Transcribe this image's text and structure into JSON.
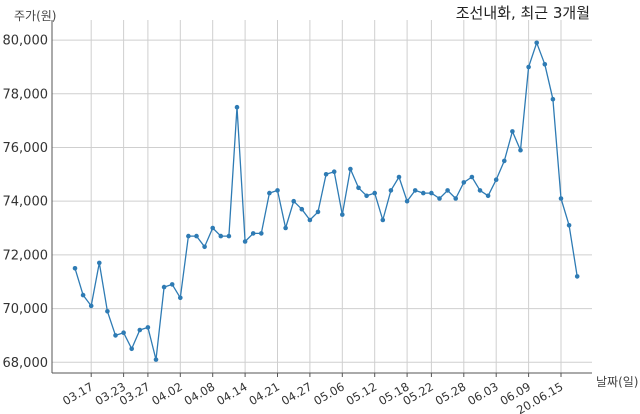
{
  "chart_data": {
    "type": "line",
    "title": "조선내화, 최근 3개월",
    "ylabel": "주가(원)",
    "xlabel": "날짜(일)",
    "ylim": [
      67600,
      80600
    ],
    "yticks": [
      68000,
      70000,
      72000,
      74000,
      76000,
      78000,
      80000
    ],
    "ytick_labels": [
      "68,000",
      "70,000",
      "72,000",
      "74,000",
      "76,000",
      "78,000",
      "80,000"
    ],
    "xtick_labels": [
      "03.17",
      "03.23",
      "03.27",
      "04.02",
      "04.08",
      "04.14",
      "04.21",
      "04.27",
      "05.06",
      "05.12",
      "05.18",
      "05.22",
      "05.28",
      "06.03",
      "06.09",
      "20.06.15"
    ],
    "xtick_positions": [
      2,
      6,
      9,
      13,
      17,
      21,
      25,
      29,
      33,
      37,
      41,
      44,
      48,
      52,
      56,
      60
    ],
    "grid": true,
    "color": "#2e7bb4",
    "series": [
      {
        "values": [
          71500,
          70500,
          70100,
          71700,
          69900,
          69000,
          69100,
          68500,
          69200,
          69300,
          68100,
          70800,
          70900,
          70400,
          72700,
          72700,
          72300,
          73000,
          72700,
          72700,
          77500,
          72500,
          72800,
          72800,
          74300,
          74400,
          73000,
          74000,
          73700,
          73300,
          73600,
          75000,
          75100,
          73500,
          75200,
          74500,
          74200,
          74300,
          73300,
          74400,
          74900,
          74000,
          74400,
          74300,
          74300,
          74100,
          74400,
          74100,
          74700,
          74900,
          74400,
          74200,
          74800,
          75500,
          76600,
          75900,
          79000,
          79900,
          79100,
          77800,
          74100,
          73100,
          71200
        ]
      }
    ]
  }
}
